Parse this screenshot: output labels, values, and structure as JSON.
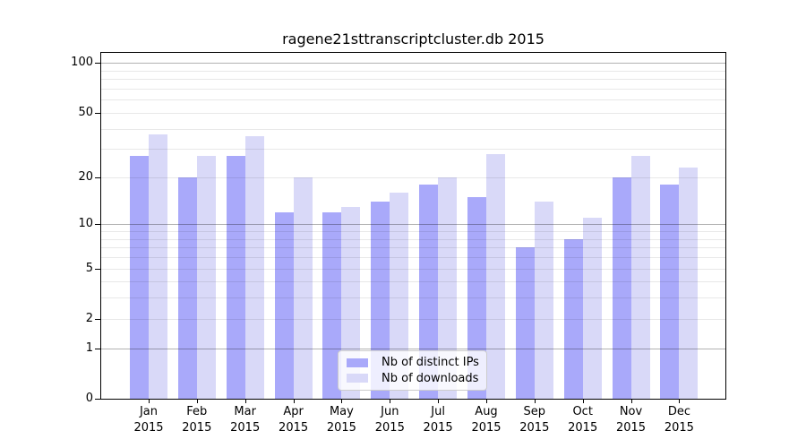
{
  "chart_data": {
    "type": "bar",
    "title": "ragene21sttranscriptcluster.db 2015",
    "categories": [
      "Jan",
      "Feb",
      "Mar",
      "Apr",
      "May",
      "Jun",
      "Jul",
      "Aug",
      "Sep",
      "Oct",
      "Nov",
      "Dec"
    ],
    "year": "2015",
    "series": [
      {
        "name": "Nb of distinct IPs",
        "color": "#a9a9fa",
        "values": [
          27,
          20,
          27,
          12,
          12,
          14,
          18,
          15,
          7,
          8,
          20,
          18
        ]
      },
      {
        "name": "Nb of downloads",
        "color": "#d9d9f8",
        "values": [
          37,
          27,
          36,
          20,
          13,
          16,
          20,
          28,
          14,
          11,
          27,
          23
        ]
      }
    ],
    "y_axis": {
      "scale": "log1p",
      "ticks": [
        0,
        1,
        2,
        5,
        10,
        20,
        50,
        100
      ],
      "max": 115
    },
    "grid": {
      "minor_color": "rgba(0,0,0,0.09)",
      "major_color": "rgba(0,0,0,0.30)",
      "major_at": [
        1,
        10,
        100
      ]
    },
    "legend_position": "lower center inside plot"
  }
}
